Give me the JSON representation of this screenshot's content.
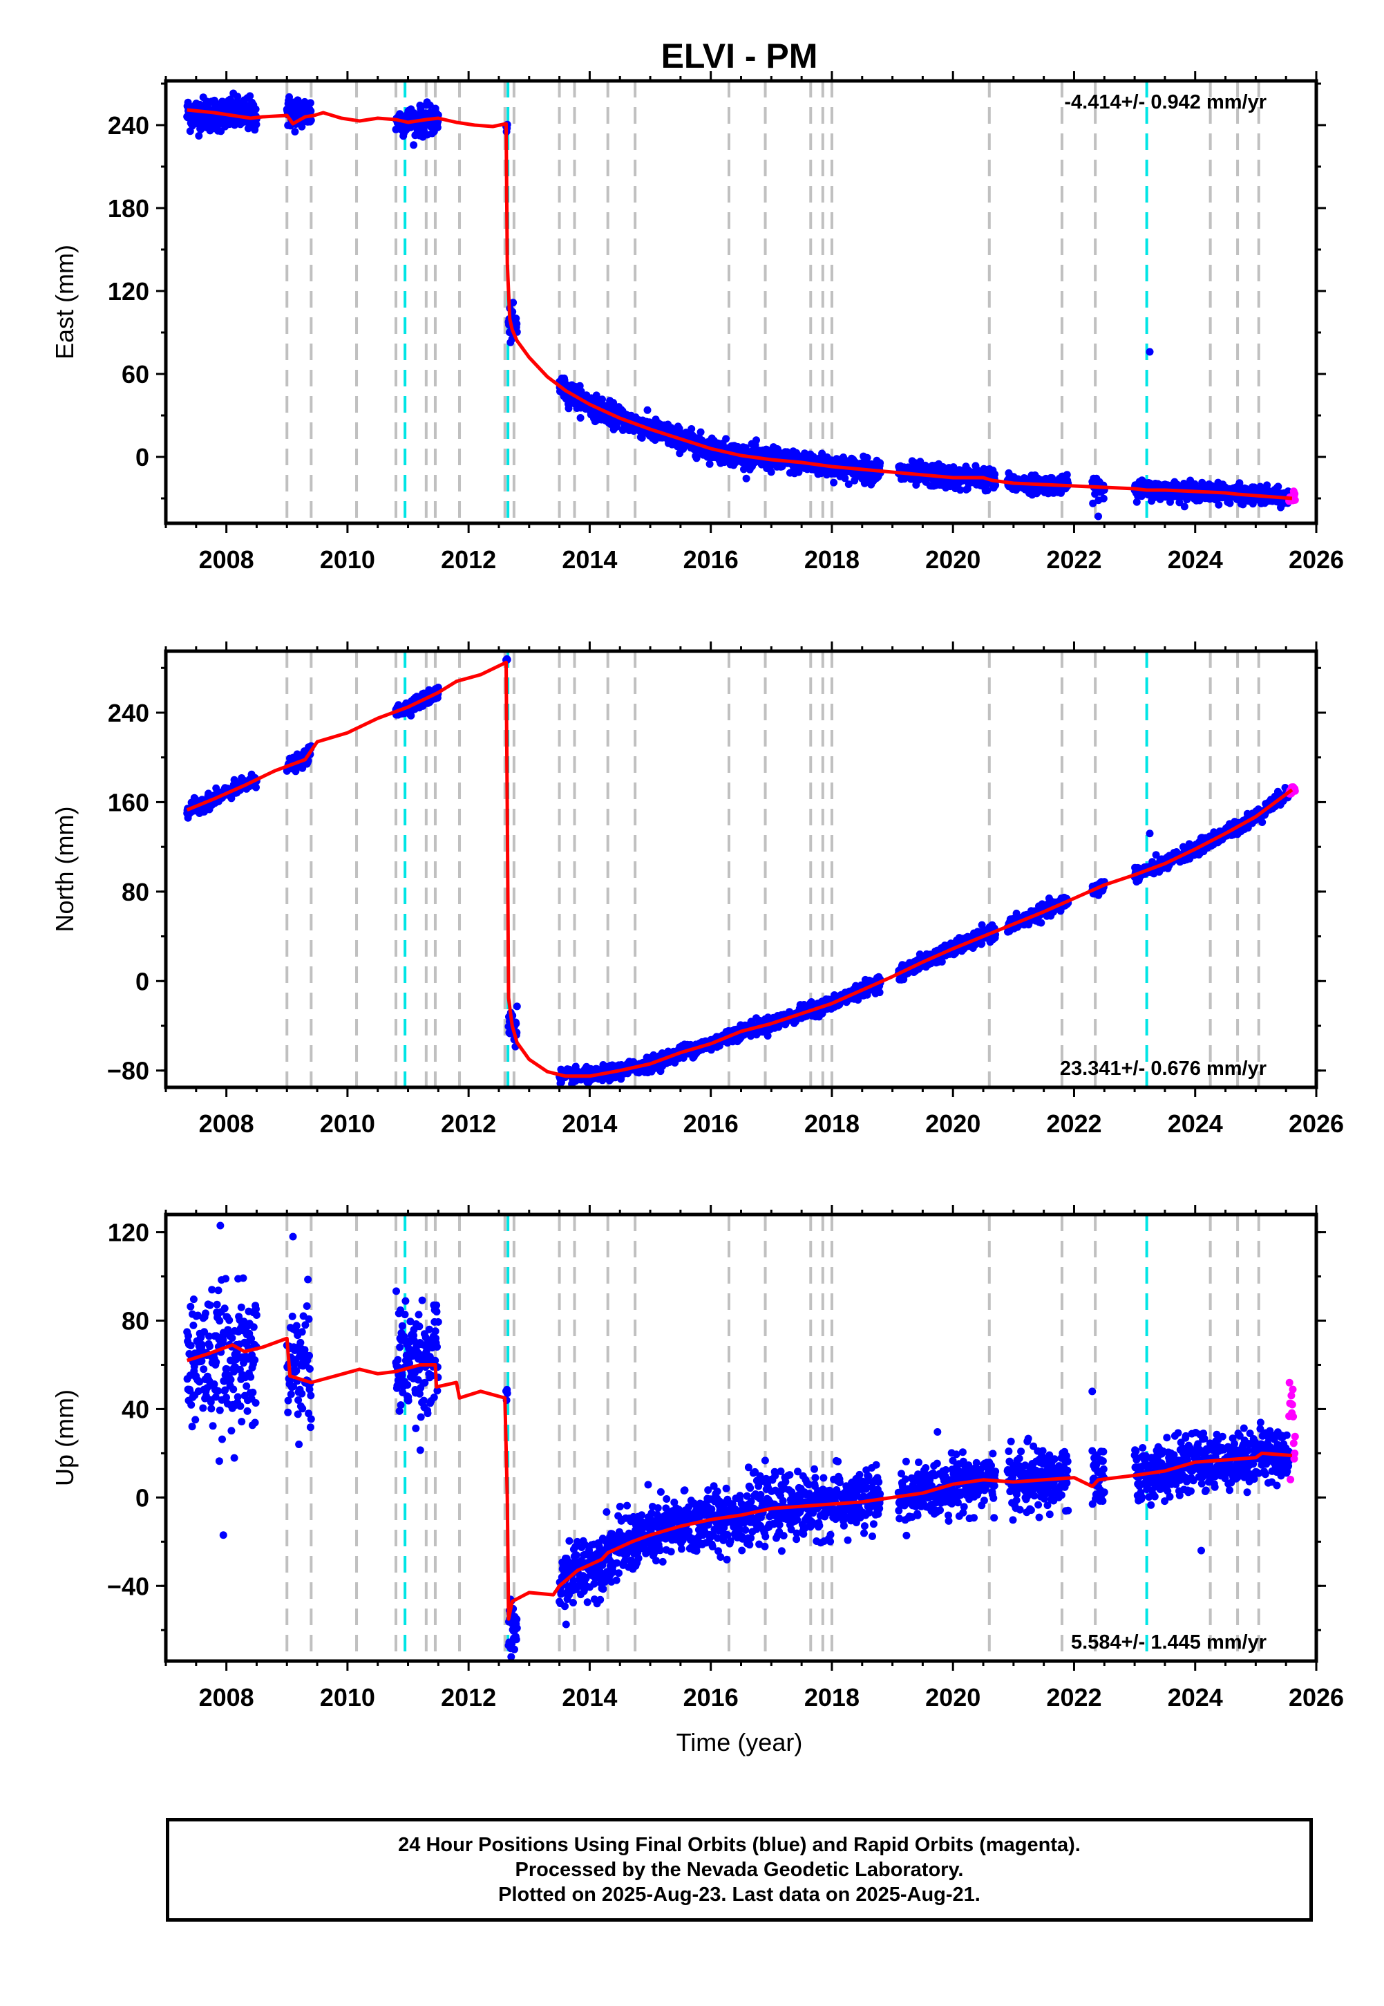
{
  "title": "ELVI - PM",
  "colors": {
    "final_orbits": "#0000ff",
    "rapid_orbits": "#ff00ff",
    "model": "#ff0000",
    "equipment_change": "#c0c0c0",
    "earthquake": "#00e5e5",
    "frame": "#000000"
  },
  "xlabel": "Time (year)",
  "x_ticks": [
    "2008",
    "2010",
    "2012",
    "2014",
    "2016",
    "2018",
    "2020",
    "2022",
    "2024",
    "2026"
  ],
  "footer": {
    "line1": "24 Hour Positions Using Final Orbits (blue) and Rapid Orbits (magenta).",
    "line2": "Processed by the Nevada Geodetic Laboratory.",
    "line3": "Plotted on 2025-Aug-23. Last data on 2025-Aug-21."
  },
  "chart_data": [
    {
      "type": "scatter",
      "component": "east",
      "ylabel": "East (mm)",
      "rate_text": "-4.414+/- 0.942 mm/yr",
      "rate_position": "top-right",
      "xlim": [
        2007.0,
        2026.0
      ],
      "ylim": [
        -48,
        272
      ],
      "y_ticks": [
        -60,
        0,
        60,
        120,
        180,
        240
      ],
      "y_tick_labels": [
        "",
        "0",
        "60",
        "120",
        "180",
        "240"
      ],
      "vertical_lines_gray": [
        2009.0,
        2009.4,
        2010.15,
        2010.8,
        2011.3,
        2011.45,
        2011.85,
        2012.6,
        2012.75,
        2013.5,
        2013.75,
        2014.3,
        2014.75,
        2016.3,
        2016.9,
        2017.65,
        2017.85,
        2018.0,
        2020.6,
        2021.8,
        2022.35,
        2024.25,
        2024.7,
        2025.05
      ],
      "vertical_lines_cyan": [
        2010.95,
        2012.65,
        2023.2
      ],
      "model": {
        "x": [
          2007.35,
          2007.8,
          2008.1,
          2008.4,
          2008.6,
          2009.0,
          2009.1,
          2009.3,
          2009.45,
          2009.6,
          2009.9,
          2010.2,
          2010.5,
          2010.8,
          2011.0,
          2011.3,
          2011.5,
          2011.8,
          2012.1,
          2012.4,
          2012.62,
          2012.64,
          2012.68,
          2012.72,
          2012.8,
          2013.0,
          2013.3,
          2013.6,
          2014.0,
          2014.5,
          2015.0,
          2015.5,
          2016.0,
          2016.5,
          2017.0,
          2017.5,
          2018.0,
          2018.5,
          2019.0,
          2019.5,
          2020.0,
          2020.5,
          2020.65,
          2021.0,
          2021.5,
          2022.0,
          2022.5,
          2023.0,
          2023.2,
          2023.5,
          2024.0,
          2024.5,
          2024.7,
          2025.0,
          2025.3,
          2025.6
        ],
        "y": [
          251,
          249,
          247,
          245,
          246,
          247,
          241,
          246,
          247,
          249,
          245,
          243,
          245,
          244,
          242,
          244,
          245,
          242,
          240,
          239,
          241,
          140,
          100,
          92,
          84,
          72,
          58,
          48,
          38,
          28,
          20,
          13,
          6,
          1,
          -2,
          -4,
          -7,
          -9,
          -11,
          -13,
          -15,
          -15,
          -17,
          -19,
          -20,
          -21,
          -22,
          -23,
          -24,
          -24,
          -25,
          -26,
          -27,
          -28,
          -29,
          -30
        ]
      },
      "final_orbits": [
        {
          "x": [
            2007.35,
            2008.5
          ],
          "y_center": 248,
          "scatter": 6
        },
        {
          "x": [
            2009.0,
            2009.4
          ],
          "y_center": 249,
          "scatter": 6
        },
        {
          "x": [
            2010.8,
            2011.5
          ],
          "y_center": 243,
          "scatter": 5
        },
        {
          "x": [
            2012.62,
            2012.64
          ],
          "y_center": 238,
          "scatter": 3
        },
        {
          "x": [
            2012.66,
            2012.8
          ],
          "y_center": 95,
          "scatter": 6
        },
        {
          "x": [
            2013.5,
            2018.8
          ],
          "y_center": "model",
          "scatter": 4
        },
        {
          "x": [
            2019.1,
            2020.7
          ],
          "y_center": "model",
          "scatter": 4
        },
        {
          "x": [
            2020.9,
            2021.9
          ],
          "y_center": "model",
          "scatter": 3
        },
        {
          "x": [
            2022.3,
            2022.5
          ],
          "y_center": "model",
          "scatter": 4
        },
        {
          "x": [
            2023.0,
            2025.55
          ],
          "y_center": "model",
          "scatter": 3
        }
      ],
      "outliers": [
        {
          "x": 2023.25,
          "y": 76
        },
        {
          "x": 2022.4,
          "y": -43
        }
      ],
      "rapid_orbits": {
        "x": [
          2025.55,
          2025.65
        ],
        "y_center": -29,
        "scatter": 3
      }
    },
    {
      "type": "scatter",
      "component": "north",
      "ylabel": "North (mm)",
      "rate_text": "23.341+/- 0.676 mm/yr",
      "rate_position": "bottom-right",
      "xlim": [
        2007.0,
        2026.0
      ],
      "ylim": [
        -95,
        295
      ],
      "y_ticks": [
        -80,
        0,
        80,
        160,
        240
      ],
      "y_tick_labels": [
        "−80",
        "0",
        "80",
        "160",
        "240"
      ],
      "vertical_lines_gray": [
        2009.0,
        2009.4,
        2010.15,
        2010.8,
        2011.3,
        2011.45,
        2011.85,
        2012.6,
        2012.75,
        2013.5,
        2013.75,
        2014.3,
        2014.75,
        2016.3,
        2016.9,
        2017.65,
        2017.85,
        2018.0,
        2020.6,
        2021.8,
        2022.35,
        2024.25,
        2024.7,
        2025.05
      ],
      "vertical_lines_cyan": [
        2010.95,
        2012.65,
        2023.2
      ],
      "model": {
        "x": [
          2007.35,
          2007.8,
          2008.3,
          2008.8,
          2009.3,
          2009.5,
          2010.0,
          2010.5,
          2011.0,
          2011.5,
          2011.8,
          2012.2,
          2012.62,
          2012.64,
          2012.66,
          2012.72,
          2012.8,
          2013.0,
          2013.3,
          2013.6,
          2014.0,
          2014.5,
          2015.0,
          2015.5,
          2016.0,
          2016.5,
          2017.0,
          2017.5,
          2018.0,
          2018.5,
          2019.0,
          2019.5,
          2020.0,
          2020.5,
          2021.0,
          2021.5,
          2022.0,
          2022.5,
          2023.0,
          2023.5,
          2024.0,
          2024.5,
          2025.0,
          2025.6
        ],
        "y": [
          153,
          163,
          175,
          188,
          198,
          214,
          222,
          235,
          245,
          258,
          268,
          274,
          285,
          150,
          -15,
          -40,
          -55,
          -70,
          -81,
          -85,
          -85,
          -80,
          -74,
          -64,
          -56,
          -45,
          -38,
          -29,
          -20,
          -8,
          4,
          17,
          29,
          40,
          51,
          62,
          74,
          86,
          95,
          105,
          118,
          132,
          147,
          171
        ]
      },
      "final_orbits": [
        {
          "x": [
            2007.35,
            2008.5
          ],
          "y_center": "model",
          "scatter": 3
        },
        {
          "x": [
            2009.0,
            2009.4
          ],
          "y_center": "model",
          "scatter": 3
        },
        {
          "x": [
            2010.8,
            2011.5
          ],
          "y_center": "model",
          "scatter": 3
        },
        {
          "x": [
            2012.62,
            2012.64
          ],
          "y_center": 287,
          "scatter": 2
        },
        {
          "x": [
            2012.66,
            2012.8
          ],
          "y_center": -40,
          "scatter": 8
        },
        {
          "x": [
            2013.5,
            2018.8
          ],
          "y_center": "model",
          "scatter": 3
        },
        {
          "x": [
            2019.1,
            2020.7
          ],
          "y_center": "model",
          "scatter": 3
        },
        {
          "x": [
            2020.9,
            2021.9
          ],
          "y_center": "model",
          "scatter": 3
        },
        {
          "x": [
            2022.3,
            2022.5
          ],
          "y_center": "model",
          "scatter": 3
        },
        {
          "x": [
            2023.0,
            2025.55
          ],
          "y_center": "model",
          "scatter": 3
        }
      ],
      "outliers": [
        {
          "x": 2023.25,
          "y": 132
        }
      ],
      "rapid_orbits": {
        "x": [
          2025.55,
          2025.65
        ],
        "y_center": 171,
        "scatter": 2
      }
    },
    {
      "type": "scatter",
      "component": "up",
      "ylabel": "Up (mm)",
      "rate_text": "5.584+/- 1.445 mm/yr",
      "rate_position": "bottom-right",
      "xlim": [
        2007.0,
        2026.0
      ],
      "ylim": [
        -74,
        128
      ],
      "y_ticks": [
        -40,
        0,
        40,
        80,
        120
      ],
      "y_tick_labels": [
        "−40",
        "0",
        "40",
        "80",
        "120"
      ],
      "vertical_lines_gray": [
        2009.0,
        2009.4,
        2010.15,
        2010.8,
        2011.3,
        2011.45,
        2011.85,
        2012.6,
        2012.75,
        2013.5,
        2013.75,
        2014.3,
        2014.75,
        2016.3,
        2016.9,
        2017.65,
        2017.85,
        2018.0,
        2020.6,
        2021.8,
        2022.35,
        2024.25,
        2024.7,
        2025.05
      ],
      "vertical_lines_cyan": [
        2010.95,
        2012.65,
        2023.2
      ],
      "model": {
        "x": [
          2007.35,
          2007.7,
          2008.1,
          2008.3,
          2008.6,
          2009.0,
          2009.05,
          2009.4,
          2009.8,
          2010.2,
          2010.5,
          2010.8,
          2011.2,
          2011.45,
          2011.47,
          2011.8,
          2011.85,
          2012.2,
          2012.6,
          2012.64,
          2012.66,
          2012.72,
          2013.0,
          2013.4,
          2013.5,
          2013.8,
          2014.2,
          2014.3,
          2014.7,
          2015.0,
          2015.5,
          2016.0,
          2016.5,
          2017.0,
          2017.5,
          2018.0,
          2018.5,
          2019.0,
          2019.5,
          2020.0,
          2020.5,
          2021.0,
          2021.5,
          2022.0,
          2022.3,
          2022.4,
          2023.0,
          2023.5,
          2024.0,
          2024.5,
          2025.0,
          2025.1,
          2025.6
        ],
        "y": [
          62,
          65,
          69,
          66,
          68,
          72,
          55,
          52,
          55,
          58,
          56,
          57,
          60,
          60,
          50,
          52,
          45,
          48,
          45,
          0,
          -55,
          -47,
          -43,
          -44,
          -40,
          -33,
          -28,
          -25,
          -20,
          -17,
          -13,
          -10,
          -8,
          -5,
          -4,
          -3,
          -2,
          0,
          2,
          6,
          8,
          7,
          8,
          9,
          5,
          8,
          10,
          12,
          16,
          17,
          18,
          20,
          19
        ]
      },
      "final_orbits": [
        {
          "x": [
            2007.35,
            2008.5
          ],
          "y_center": 62,
          "scatter": 15
        },
        {
          "x": [
            2009.0,
            2009.4
          ],
          "y_center": 60,
          "scatter": 15
        },
        {
          "x": [
            2010.8,
            2011.5
          ],
          "y_center": 62,
          "scatter": 13
        },
        {
          "x": [
            2012.62,
            2012.64
          ],
          "y_center": 48,
          "scatter": 3
        },
        {
          "x": [
            2012.66,
            2012.8
          ],
          "y_center": -60,
          "scatter": 6
        },
        {
          "x": [
            2013.5,
            2018.8
          ],
          "y_center": "model",
          "scatter": 7
        },
        {
          "x": [
            2019.1,
            2020.7
          ],
          "y_center": "model",
          "scatter": 6
        },
        {
          "x": [
            2020.9,
            2021.9
          ],
          "y_center": "model",
          "scatter": 7
        },
        {
          "x": [
            2022.3,
            2022.5
          ],
          "y_center": "model",
          "scatter": 7
        },
        {
          "x": [
            2023.0,
            2025.55
          ],
          "y_center": "model",
          "scatter": 6
        }
      ],
      "outliers": [
        {
          "x": 2007.9,
          "y": 123
        },
        {
          "x": 2009.1,
          "y": 118
        },
        {
          "x": 2007.95,
          "y": -17
        },
        {
          "x": 2022.3,
          "y": 48
        },
        {
          "x": 2024.1,
          "y": -24
        }
      ],
      "rapid_orbits": {
        "x": [
          2025.55,
          2025.65
        ],
        "y_center": 35,
        "scatter": 12
      }
    }
  ]
}
